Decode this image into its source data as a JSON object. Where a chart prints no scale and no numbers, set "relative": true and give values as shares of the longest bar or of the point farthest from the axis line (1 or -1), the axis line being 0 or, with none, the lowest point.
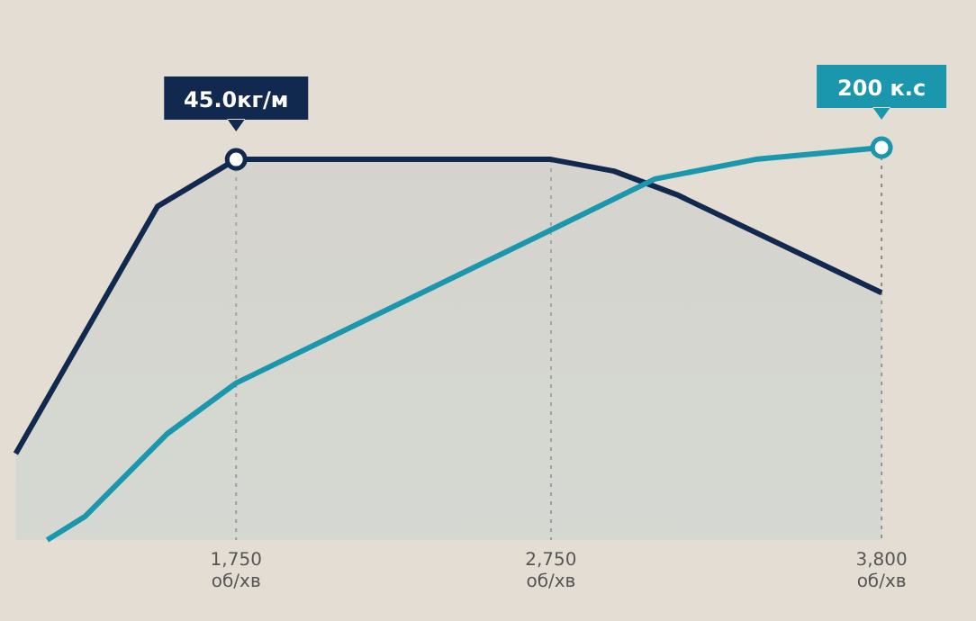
{
  "chart_data": {
    "type": "line",
    "relative": true,
    "xlim": [
      1000,
      4100
    ],
    "xticks": [
      {
        "value": 1750,
        "label": "1,750\nоб/хв"
      },
      {
        "value": 2750,
        "label": "2,750\nоб/хв"
      },
      {
        "value": 3800,
        "label": "3,800\nоб/хв"
      }
    ],
    "tick_labels": "x",
    "grid": "x",
    "series": [
      {
        "type": "area",
        "color": "#12294f",
        "x": [
          1050,
          1500,
          1750,
          2750,
          2950,
          3150,
          3800
        ],
        "values": [
          0.22,
          0.85,
          0.97,
          0.97,
          0.94,
          0.88,
          0.63
        ]
      },
      {
        "type": "line",
        "color": "#1a97ad",
        "x": [
          1150,
          1270,
          1530,
          1750,
          2750,
          3080,
          3400,
          3800
        ],
        "values": [
          0,
          0.06,
          0.27,
          0.4,
          0.79,
          0.92,
          0.97,
          1
        ]
      }
    ],
    "annotations": [
      {
        "text": "45.0кг/м",
        "x": 1750,
        "y": 0.97
      },
      {
        "text": "200 к.с",
        "x": 3800,
        "y": 1
      }
    ]
  }
}
